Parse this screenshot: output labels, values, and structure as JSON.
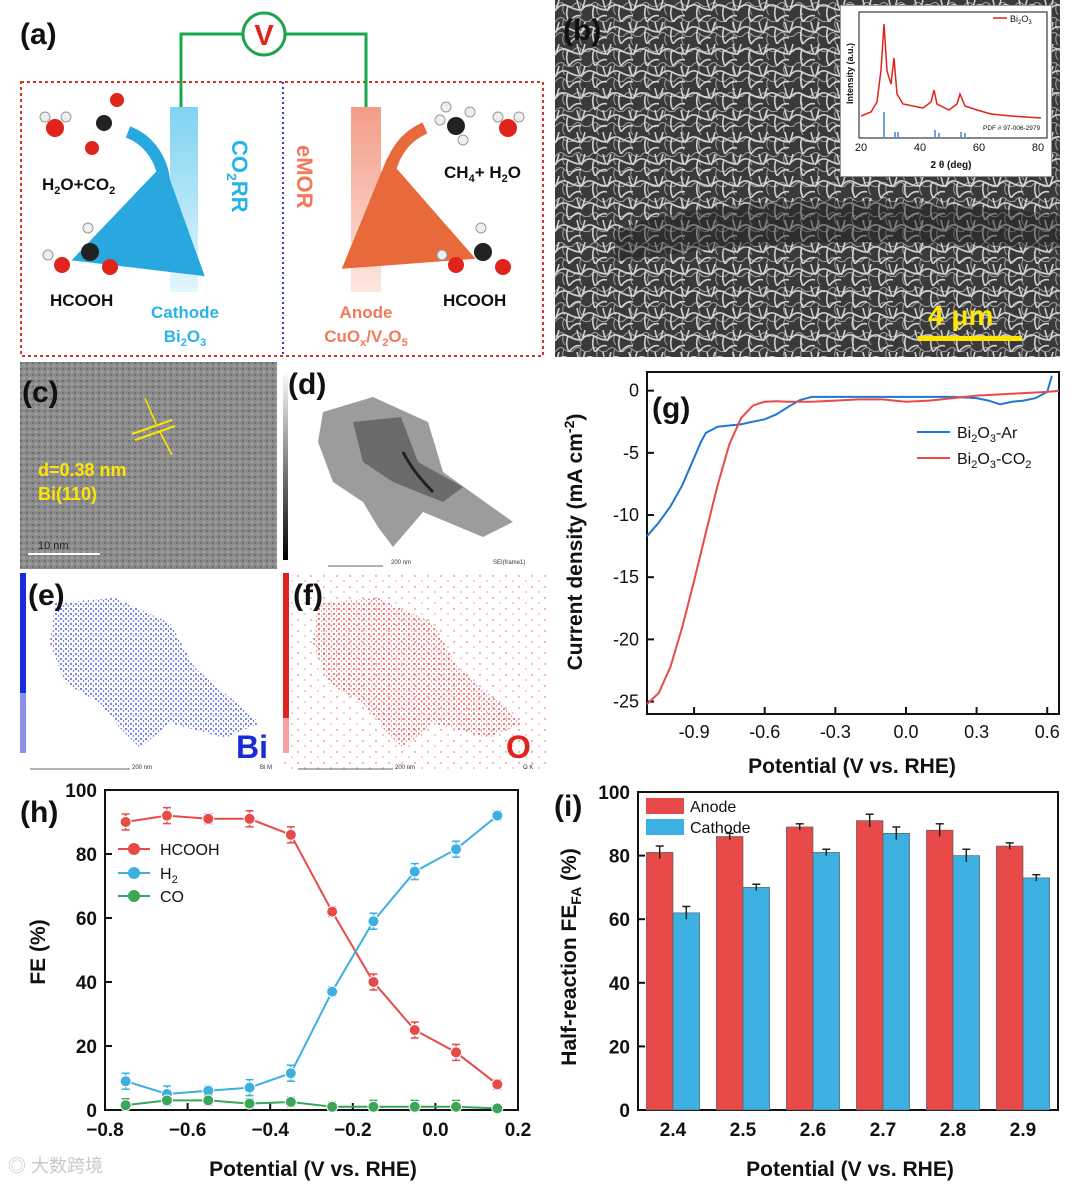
{
  "panels": {
    "a": {
      "label": "(a)",
      "voltmeter": "V",
      "cathode_reaction": "CO",
      "cathode_reaction_sub": "2",
      "cathode_reaction_tail": "RR",
      "anode_reaction": "eMOR",
      "left_reactant": "H",
      "left_reactant_sub": "2",
      "left_reactant_mid": "O+CO",
      "left_reactant_sub2": "2",
      "left_product": "HCOOH",
      "right_reactant": "CH",
      "right_reactant_sub": "4",
      "right_reactant_tail": "+ H",
      "right_reactant_sub2": "2",
      "right_reactant_tail2": "O",
      "right_product": "HCOOH",
      "cathode_label": "Cathode",
      "cathode_material": "Bi",
      "cathode_material_sub": "2",
      "cathode_material_tail": "O",
      "cathode_material_sub2": "3",
      "anode_label": "Anode",
      "anode_material": "CuO",
      "anode_material_sub": "x",
      "anode_material_mid": "/V",
      "anode_material_sub2": "2",
      "anode_material_tail": "O",
      "anode_material_sub3": "5"
    },
    "b": {
      "label": "(b)",
      "scale_bar": "4 μm",
      "inset_legend": "Bi",
      "inset_legend_sub": "2",
      "inset_legend_tail": "O",
      "inset_legend_sub2": "3",
      "inset_ylabel": "Intensity (a.u.)",
      "inset_xlabel": "2 θ (deg)",
      "inset_ticks": [
        "20",
        "40",
        "60",
        "80"
      ],
      "inset_pdf": "PDF # 97-006-2979"
    },
    "c": {
      "label": "(c)",
      "d_spacing": "d=0.38 nm",
      "plane": "Bi(110)",
      "scale": "10  nm"
    },
    "d": {
      "label": "(d)",
      "scale": "200 nm",
      "caption": "SEI(frame1)"
    },
    "e": {
      "label": "(e)",
      "element": "Bi",
      "scale": "200 nm",
      "caption": "Bi M"
    },
    "f": {
      "label": "(f)",
      "element": "O",
      "scale": "200 nm",
      "caption": "O K"
    },
    "g": {
      "label": "(g)"
    },
    "h": {
      "label": "(h)"
    },
    "i": {
      "label": "(i)"
    }
  },
  "watermark": "大数跨境",
  "colors": {
    "red": "#e84a4a",
    "blue": "#1f78d1",
    "green": "#3aa65a",
    "cyan": "#3cb0e0",
    "border": "#d9342b"
  },
  "chart_data": [
    {
      "id": "g",
      "type": "line",
      "xlabel": "Potential (V vs. RHE)",
      "ylabel": "Current density (mA cm",
      "ylabel_sup": "-2",
      "ylabel_tail": ")",
      "xlim": [
        -1.1,
        0.65
      ],
      "ylim": [
        -26,
        1.5
      ],
      "xticks": [
        "-0.9",
        "-0.6",
        "-0.3",
        "0.0",
        "0.3",
        "0.6"
      ],
      "yticks": [
        "0",
        "-5",
        "-10",
        "-15",
        "-20",
        "-25"
      ],
      "series": [
        {
          "name": "Bi2O3-Ar",
          "label": "Bi",
          "label_sub": "2",
          "label_mid": "O",
          "label_sub2": "3",
          "label_tail": "-Ar",
          "color": "#1f78d1",
          "x": [
            -1.1,
            -1.05,
            -1.0,
            -0.95,
            -0.9,
            -0.87,
            -0.85,
            -0.8,
            -0.75,
            -0.7,
            -0.65,
            -0.6,
            -0.55,
            -0.5,
            -0.45,
            -0.4,
            -0.3,
            -0.2,
            -0.1,
            0.0,
            0.1,
            0.2,
            0.3,
            0.35,
            0.4,
            0.45,
            0.5,
            0.55,
            0.6,
            0.62
          ],
          "y": [
            -11.7,
            -10.6,
            -9.3,
            -7.6,
            -5.4,
            -4.1,
            -3.4,
            -2.9,
            -2.8,
            -2.7,
            -2.5,
            -2.3,
            -1.9,
            -1.3,
            -0.75,
            -0.5,
            -0.5,
            -0.5,
            -0.5,
            -0.5,
            -0.5,
            -0.5,
            -0.6,
            -0.8,
            -1.1,
            -0.9,
            -0.8,
            -0.6,
            -0.1,
            1.2
          ]
        },
        {
          "name": "Bi2O3-CO2",
          "label": "Bi",
          "label_sub": "2",
          "label_mid": "O",
          "label_sub2": "3",
          "label_tail": "-CO",
          "label_sub3": "2",
          "color": "#e84a4a",
          "x": [
            -1.1,
            -1.05,
            -1.0,
            -0.95,
            -0.9,
            -0.85,
            -0.8,
            -0.75,
            -0.7,
            -0.65,
            -0.62,
            -0.6,
            -0.55,
            -0.5,
            -0.45,
            -0.4,
            -0.3,
            -0.2,
            -0.1,
            0.0,
            0.1,
            0.2,
            0.3,
            0.4,
            0.5,
            0.6,
            0.65
          ],
          "y": [
            -25.2,
            -24.3,
            -22.2,
            -19.0,
            -15.3,
            -11.4,
            -7.6,
            -4.3,
            -2.2,
            -1.2,
            -1.0,
            -0.9,
            -0.85,
            -0.9,
            -0.9,
            -0.9,
            -0.8,
            -0.7,
            -0.7,
            -0.9,
            -0.8,
            -0.6,
            -0.4,
            -0.3,
            -0.2,
            -0.1,
            0.0
          ]
        }
      ]
    },
    {
      "id": "h",
      "type": "line",
      "xlabel": "Potential (V vs. RHE)",
      "ylabel": "FE (%)",
      "xlim": [
        -0.8,
        0.2
      ],
      "ylim": [
        0,
        100
      ],
      "xticks": [
        "−0.8",
        "−0.6",
        "−0.4",
        "−0.2",
        "0.0",
        "0.2"
      ],
      "xtick_values": [
        -0.8,
        -0.6,
        -0.4,
        -0.2,
        0.0,
        0.2
      ],
      "yticks": [
        "0",
        "20",
        "40",
        "60",
        "80",
        "100"
      ],
      "x": [
        -0.75,
        -0.65,
        -0.55,
        -0.45,
        -0.35,
        -0.25,
        -0.15,
        -0.05,
        0.05,
        0.15
      ],
      "series": [
        {
          "name": "HCOOH",
          "label": "HCOOH",
          "color": "#e84a4a",
          "values": [
            90,
            92,
            91,
            91,
            86,
            62,
            40,
            25,
            18,
            8
          ],
          "errors": [
            2.5,
            2.5,
            1.5,
            2.5,
            2.5,
            1.5,
            2.5,
            2.5,
            2.5,
            1.5
          ]
        },
        {
          "name": "H2",
          "label": "H",
          "label_sub": "2",
          "color": "#3cb0e0",
          "values": [
            9,
            5,
            6,
            7,
            11.5,
            37,
            59,
            74.5,
            81.5,
            92
          ],
          "errors": [
            2.5,
            2.5,
            1.5,
            2.5,
            2.5,
            1.5,
            2.5,
            2.5,
            2.5,
            1.5
          ]
        },
        {
          "name": "CO",
          "label": "CO",
          "color": "#3aa65a",
          "values": [
            1.5,
            3,
            3,
            2,
            2.5,
            1,
            1,
            1,
            1,
            0.5
          ],
          "errors": [
            2,
            1.5,
            1.5,
            1.5,
            1.5,
            1.5,
            2,
            2,
            2,
            1
          ]
        }
      ]
    },
    {
      "id": "i",
      "type": "bar",
      "xlabel": "Potential (V vs. RHE)",
      "ylabel": "Half-reaction FE",
      "ylabel_sub": "FA",
      "ylabel_tail": " (%)",
      "ylim": [
        0,
        100
      ],
      "yticks": [
        "0",
        "20",
        "40",
        "60",
        "80",
        "100"
      ],
      "categories": [
        "2.4",
        "2.5",
        "2.6",
        "2.7",
        "2.8",
        "2.9"
      ],
      "series": [
        {
          "name": "Anode",
          "color": "#e84a4a",
          "values": [
            81,
            86,
            89,
            91,
            88,
            83
          ],
          "errors": [
            2,
            1,
            1,
            2,
            2,
            1
          ]
        },
        {
          "name": "Cathode",
          "color": "#3cb0e0",
          "values": [
            62,
            70,
            81,
            87,
            80,
            73
          ],
          "errors": [
            2,
            1,
            1,
            2,
            2,
            1
          ]
        }
      ]
    }
  ]
}
